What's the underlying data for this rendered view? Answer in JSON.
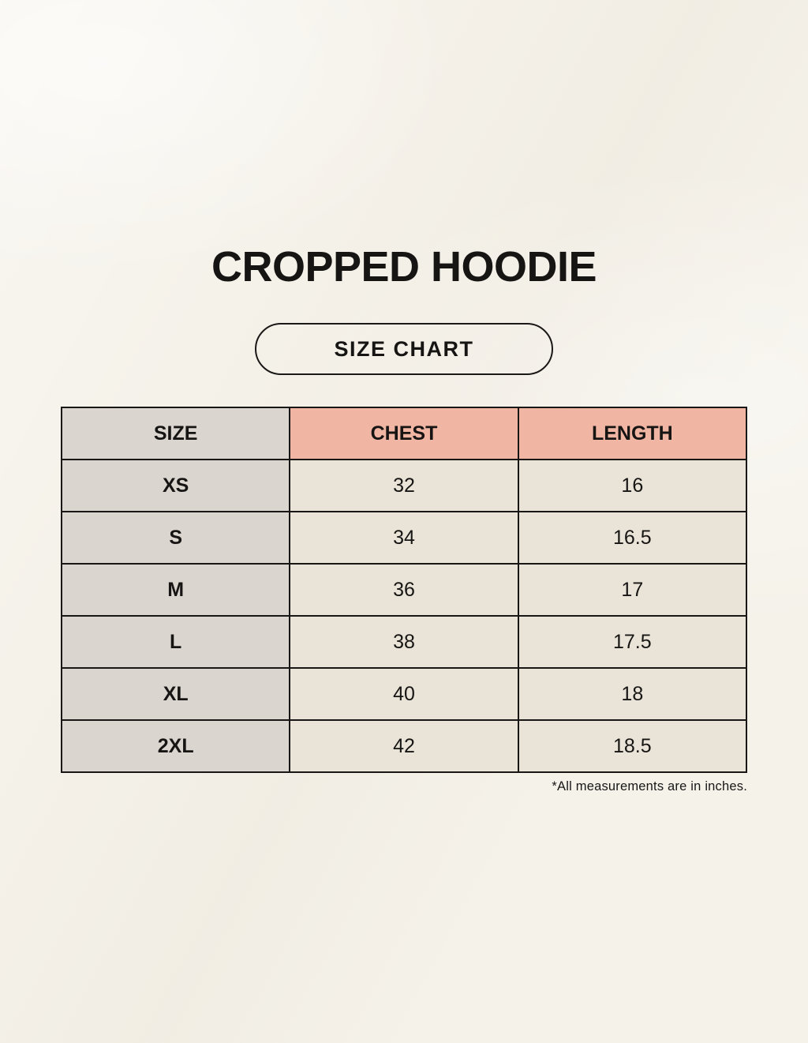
{
  "page": {
    "title": "CROPPED HOODIE",
    "badge_label": "SIZE CHART",
    "footnote": "*All measurements are in inches."
  },
  "colors": {
    "background": "#f5f2ea",
    "header_accent": "#f1b5a3",
    "size_column_bg": "#dbd5cf",
    "data_cell_bg": "#eae3d7",
    "border": "#181716",
    "text": "#161514"
  },
  "chart_data": {
    "type": "table",
    "title": "CROPPED HOODIE",
    "subtitle": "SIZE CHART",
    "columns": [
      "SIZE",
      "CHEST",
      "LENGTH"
    ],
    "rows": [
      [
        "XS",
        "32",
        "16"
      ],
      [
        "S",
        "34",
        "16.5"
      ],
      [
        "M",
        "36",
        "17"
      ],
      [
        "L",
        "38",
        "17.5"
      ],
      [
        "XL",
        "40",
        "18"
      ],
      [
        "2XL",
        "42",
        "18.5"
      ]
    ],
    "units": "inches",
    "note": "*All measurements are in inches."
  }
}
